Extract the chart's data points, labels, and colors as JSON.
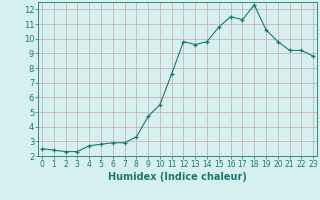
{
  "x": [
    0,
    1,
    2,
    3,
    4,
    5,
    6,
    7,
    8,
    9,
    10,
    11,
    12,
    13,
    14,
    15,
    16,
    17,
    18,
    19,
    20,
    21,
    22,
    23
  ],
  "y": [
    2.5,
    2.4,
    2.3,
    2.3,
    2.7,
    2.8,
    2.9,
    2.9,
    3.3,
    4.7,
    5.5,
    7.6,
    9.8,
    9.6,
    9.8,
    10.8,
    11.5,
    11.3,
    12.3,
    10.6,
    9.8,
    9.2,
    9.2,
    8.8
  ],
  "xlim": [
    -0.3,
    23.3
  ],
  "ylim": [
    2,
    12.5
  ],
  "xticks": [
    0,
    1,
    2,
    3,
    4,
    5,
    6,
    7,
    8,
    9,
    10,
    11,
    12,
    13,
    14,
    15,
    16,
    17,
    18,
    19,
    20,
    21,
    22,
    23
  ],
  "yticks": [
    2,
    3,
    4,
    5,
    6,
    7,
    8,
    9,
    10,
    11,
    12
  ],
  "xlabel": "Humidex (Indice chaleur)",
  "line_color": "#1a7a6e",
  "marker_color": "#1a7a6e",
  "bg_color": "#d6f0f0",
  "grid_color": "#c8a8a8",
  "tick_label_color": "#1a7a6e",
  "label_color": "#1a7a6e",
  "xlabel_fontsize": 7,
  "tick_fontsize_x": 5.5,
  "tick_fontsize_y": 6
}
